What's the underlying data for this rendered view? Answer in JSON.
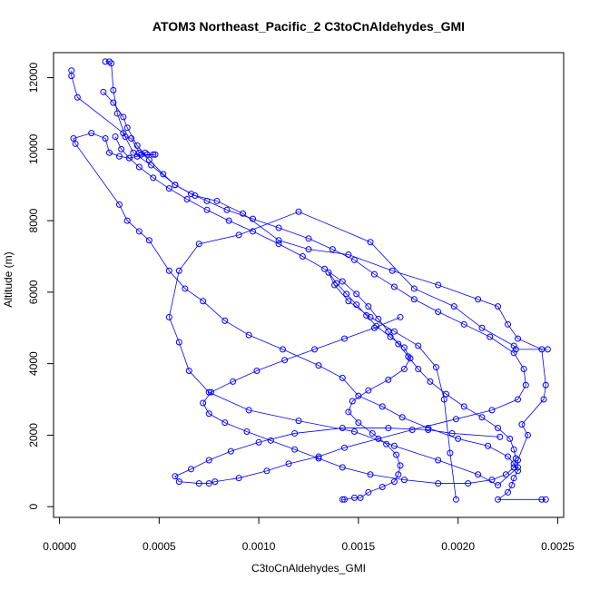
{
  "chart_data": {
    "type": "line",
    "title": "ATOM3 Northeast_Pacific_2 C3toCnAldehydes_GMI",
    "xlabel": "C3toCnAldehydes_GMI",
    "ylabel": "Altitude (m)",
    "xlim": [
      -3e-05,
      0.00253
    ],
    "ylim": [
      -300,
      12700
    ],
    "xticks": [
      0,
      0.0005,
      0.001,
      0.0015,
      0.002,
      0.0025
    ],
    "xtick_labels": [
      "0.0000",
      "0.0005",
      "0.0010",
      "0.0015",
      "0.0020",
      "0.0025"
    ],
    "yticks": [
      0,
      2000,
      4000,
      6000,
      8000,
      10000,
      12000
    ],
    "ytick_labels": [
      "0",
      "2000",
      "4000",
      "6000",
      "8000",
      "10000",
      "12000"
    ],
    "series": [
      {
        "color": "#0000ff",
        "marker": "open-circle",
        "x": [
          6e-05,
          6e-05,
          9e-05,
          0.00032,
          0.00037,
          0.00046,
          0.00058,
          0.00068,
          0.00079,
          0.00092,
          0.0011,
          0.00125,
          0.00145,
          0.00167,
          0.0019,
          0.0021,
          0.0022,
          0.00225,
          0.0023,
          0.00242,
          0.00244,
          0.00243,
          0.00232,
          0.00235,
          0.0023,
          0.0023,
          0.0022,
          0.0021,
          0.0019,
          0.00168,
          0.00148,
          0.0012,
          0.00095,
          0.00075,
          0.00065,
          0.0006,
          0.00055,
          0.0006,
          0.0007,
          0.0009,
          0.0012,
          0.00156,
          0.00178,
          0.00198,
          0.00212,
          0.00228,
          0.00229,
          0.00245
        ],
        "y": [
          12200,
          12050,
          11450,
          10450,
          9900,
          9550,
          9000,
          8700,
          8550,
          8200,
          7450,
          7200,
          7050,
          6600,
          6200,
          5800,
          5600,
          5100,
          4700,
          4400,
          3400,
          3000,
          2300,
          2000,
          1300,
          1100,
          600,
          900,
          1300,
          1700,
          2100,
          2400,
          2700,
          3200,
          3800,
          4600,
          5300,
          6600,
          7350,
          7600,
          8250,
          7400,
          6100,
          5600,
          5000,
          4500,
          4400,
          4400
        ]
      },
      {
        "color": "#0000ff",
        "marker": "open-circle",
        "x": [
          0.00023,
          0.00025,
          0.00026,
          0.00027,
          0.00029,
          0.00033,
          0.00036,
          0.0004,
          0.00043,
          0.00041,
          0.00044,
          0.00047,
          0.00048,
          0.00039,
          0.00035,
          0.0003,
          0.00025,
          0.00023,
          0.00016,
          7e-05,
          8e-05,
          0.0003,
          0.00034,
          0.0004,
          0.00045,
          0.00055,
          0.00063,
          0.00072,
          0.00083,
          0.00095,
          0.00112,
          0.0013,
          0.00142,
          0.0015,
          0.00162,
          0.00172,
          0.00185,
          0.002,
          0.00215,
          0.00225,
          0.00228,
          0.0023,
          0.00228,
          0.00227,
          0.00225,
          0.0022,
          0.00242,
          0.00244
        ],
        "y": [
          12450,
          12450,
          12400,
          11650,
          11000,
          10350,
          10300,
          9900,
          9900,
          9850,
          9850,
          9850,
          9850,
          9800,
          9750,
          9800,
          9900,
          10300,
          10450,
          10300,
          10150,
          8450,
          8000,
          7700,
          7450,
          6600,
          6100,
          5750,
          5200,
          4800,
          4400,
          3950,
          3600,
          3100,
          2800,
          2500,
          2200,
          1900,
          1700,
          1400,
          1200,
          1000,
          800,
          600,
          400,
          200,
          200,
          200
        ]
      },
      {
        "color": "#0000ff",
        "marker": "open-circle",
        "x": [
          0.00022,
          0.00027,
          0.00032,
          0.00034,
          0.00039,
          0.00045,
          0.00052,
          0.00058,
          0.00066,
          0.00074,
          0.00084,
          0.00097,
          0.0011,
          0.00125,
          0.00137,
          0.00148,
          0.00158,
          0.00168,
          0.00178,
          0.0019,
          0.00203,
          0.00216,
          0.00228,
          0.00233,
          0.00234,
          0.0023,
          0.00217,
          0.00199,
          0.00177,
          0.0016,
          0.00143,
          0.0013,
          0.00115,
          0.00104,
          0.0009,
          0.00078,
          0.00075,
          0.0007,
          0.0006,
          0.00058,
          0.00066,
          0.00075,
          0.00086,
          0.001,
          0.00118,
          0.00142,
          0.00165,
          0.00185,
          0.00197,
          0.00221
        ],
        "y": [
          11600,
          11300,
          10900,
          10600,
          10100,
          9700,
          9300,
          9000,
          8750,
          8550,
          8300,
          8050,
          7800,
          7500,
          7200,
          6900,
          6500,
          6150,
          5800,
          5450,
          5100,
          4750,
          4300,
          3850,
          3400,
          3000,
          2700,
          2450,
          2150,
          1900,
          1650,
          1400,
          1200,
          1000,
          800,
          700,
          650,
          650,
          700,
          850,
          1050,
          1300,
          1550,
          1800,
          2050,
          2200,
          2200,
          2150,
          2050,
          1950
        ]
      },
      {
        "color": "#0000ff",
        "marker": "open-circle",
        "x": [
          0.00028,
          0.00031,
          0.00035,
          0.0004,
          0.00047,
          0.00055,
          0.00064,
          0.00074,
          0.00085,
          0.00097,
          0.0011,
          0.00122,
          0.00133,
          0.00142,
          0.00149,
          0.00155,
          0.0016,
          0.00165,
          0.0017,
          0.00175,
          0.0018,
          0.00186,
          0.00194,
          0.00203,
          0.00212,
          0.0022,
          0.00226,
          0.00228,
          0.00229,
          0.00228,
          0.00224,
          0.00217,
          0.00205,
          0.0019,
          0.00173,
          0.00156,
          0.00142,
          0.0013,
          0.00118,
          0.00106,
          0.00094,
          0.00083,
          0.00075,
          0.00072,
          0.00076,
          0.00087,
          0.00099,
          0.00113,
          0.00128,
          0.00143,
          0.00158,
          0.00171
        ],
        "y": [
          10350,
          10000,
          9750,
          9500,
          9200,
          8900,
          8600,
          8300,
          8000,
          7700,
          7350,
          7000,
          6650,
          6300,
          5950,
          5600,
          5250,
          4900,
          4550,
          4200,
          3850,
          3500,
          3150,
          2800,
          2500,
          2200,
          1900,
          1600,
          1350,
          1100,
          900,
          750,
          650,
          650,
          750,
          900,
          1100,
          1350,
          1600,
          1850,
          2100,
          2350,
          2600,
          2900,
          3200,
          3500,
          3800,
          4100,
          4400,
          4700,
          5000,
          5300
        ]
      },
      {
        "color": "#0000ff",
        "marker": "open-circle",
        "x": [
          0.00142,
          0.00143,
          0.00148,
          0.00151,
          0.00155,
          0.00162,
          0.00168,
          0.0017,
          0.00171,
          0.00169,
          0.00164,
          0.00157,
          0.0015,
          0.00145,
          0.00147,
          0.00155,
          0.00165,
          0.00173,
          0.00176,
          0.00173,
          0.00166,
          0.00159,
          0.00154,
          0.00149,
          0.00144,
          0.00139,
          0.00135,
          0.00138,
          0.00145,
          0.00156,
          0.00168,
          0.0018,
          0.00189,
          0.00193,
          0.00196,
          0.00199
        ],
        "y": [
          200,
          200,
          250,
          250,
          400,
          550,
          700,
          900,
          1150,
          1450,
          1750,
          2050,
          2350,
          2650,
          2950,
          3250,
          3550,
          3850,
          4150,
          4450,
          4750,
          5050,
          5350,
          5650,
          5950,
          6250,
          6550,
          6200,
          5750,
          5300,
          4900,
          4500,
          3900,
          3000,
          1500,
          200
        ]
      }
    ]
  }
}
